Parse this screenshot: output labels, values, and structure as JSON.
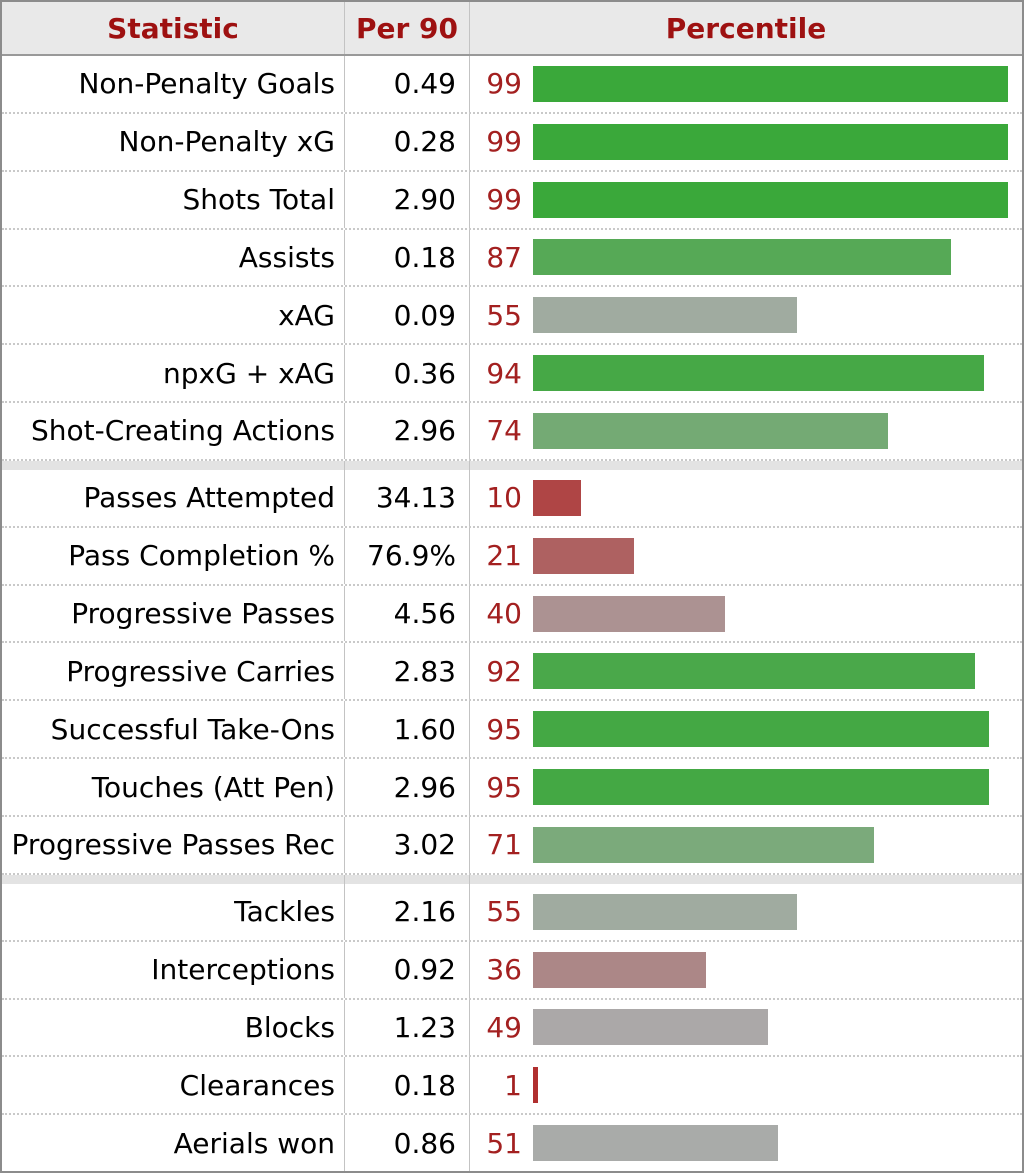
{
  "table": {
    "columns": [
      "Statistic",
      "Per 90",
      "Percentile"
    ],
    "groups": [
      {
        "rows": [
          {
            "stat": "Non-Penalty Goals",
            "per90": "0.49",
            "percentile": 99
          },
          {
            "stat": "Non-Penalty xG",
            "per90": "0.28",
            "percentile": 99
          },
          {
            "stat": "Shots Total",
            "per90": "2.90",
            "percentile": 99
          },
          {
            "stat": "Assists",
            "per90": "0.18",
            "percentile": 87
          },
          {
            "stat": "xAG",
            "per90": "0.09",
            "percentile": 55
          },
          {
            "stat": "npxG + xAG",
            "per90": "0.36",
            "percentile": 94
          },
          {
            "stat": "Shot-Creating Actions",
            "per90": "2.96",
            "percentile": 74
          }
        ]
      },
      {
        "rows": [
          {
            "stat": "Passes Attempted",
            "per90": "34.13",
            "percentile": 10
          },
          {
            "stat": "Pass Completion %",
            "per90": "76.9%",
            "percentile": 21
          },
          {
            "stat": "Progressive Passes",
            "per90": "4.56",
            "percentile": 40
          },
          {
            "stat": "Progressive Carries",
            "per90": "2.83",
            "percentile": 92
          },
          {
            "stat": "Successful Take-Ons",
            "per90": "1.60",
            "percentile": 95
          },
          {
            "stat": "Touches (Att Pen)",
            "per90": "2.96",
            "percentile": 95
          },
          {
            "stat": "Progressive Passes Rec",
            "per90": "3.02",
            "percentile": 71
          }
        ]
      },
      {
        "rows": [
          {
            "stat": "Tackles",
            "per90": "2.16",
            "percentile": 55
          },
          {
            "stat": "Interceptions",
            "per90": "0.92",
            "percentile": 36
          },
          {
            "stat": "Blocks",
            "per90": "1.23",
            "percentile": 49
          },
          {
            "stat": "Clearances",
            "per90": "0.18",
            "percentile": 1
          },
          {
            "stat": "Aerials won",
            "per90": "0.86",
            "percentile": 51
          }
        ]
      }
    ]
  },
  "style": {
    "header_text_color": "#9e1111",
    "percentile_number_color": "#a32020",
    "color_scale": {
      "red_end": [
        176,
        44,
        44
      ],
      "gray_mid": [
        171,
        171,
        171
      ],
      "green_end": [
        56,
        168,
        56
      ]
    }
  },
  "chart_data": {
    "type": "bar",
    "orientation": "horizontal",
    "xlim": [
      0,
      100
    ],
    "columns": [
      "Statistic",
      "Per 90",
      "Percentile"
    ],
    "categories": [
      "Non-Penalty Goals",
      "Non-Penalty xG",
      "Shots Total",
      "Assists",
      "xAG",
      "npxG + xAG",
      "Shot-Creating Actions",
      "Passes Attempted",
      "Pass Completion %",
      "Progressive Passes",
      "Progressive Carries",
      "Successful Take-Ons",
      "Touches (Att Pen)",
      "Progressive Passes Rec",
      "Tackles",
      "Interceptions",
      "Blocks",
      "Clearances",
      "Aerials won"
    ],
    "series": [
      {
        "name": "Per 90",
        "values": [
          "0.49",
          "0.28",
          "2.90",
          "0.18",
          "0.09",
          "0.36",
          "2.96",
          "34.13",
          "76.9%",
          "4.56",
          "2.83",
          "1.60",
          "2.96",
          "3.02",
          "2.16",
          "0.92",
          "1.23",
          "0.18",
          "0.86"
        ]
      },
      {
        "name": "Percentile",
        "values": [
          99,
          99,
          99,
          87,
          55,
          94,
          74,
          10,
          21,
          40,
          92,
          95,
          95,
          71,
          55,
          36,
          49,
          1,
          51
        ]
      }
    ],
    "group_sizes": [
      7,
      7,
      5
    ],
    "legend": false,
    "grid": false,
    "bar_color_rule": "diverging red(0) - gray(50) - green(100)"
  }
}
